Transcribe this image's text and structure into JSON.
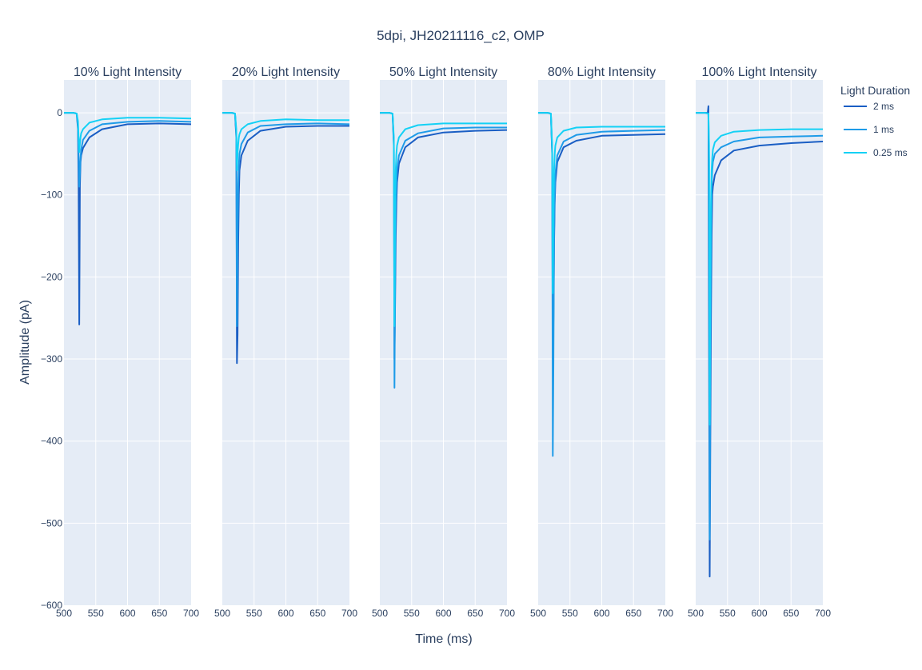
{
  "chart_data": {
    "type": "line",
    "title": "5dpi, JH20211116_c2, OMP",
    "xlabel": "Time (ms)",
    "ylabel": "Amplitude (pA)",
    "xlim": [
      500,
      700
    ],
    "ylim": [
      -600,
      40
    ],
    "x_ticks": [
      "500",
      "550",
      "600",
      "650",
      "700"
    ],
    "y_ticks": [
      {
        "value": 0,
        "label": "0"
      },
      {
        "value": -100,
        "label": "−100"
      },
      {
        "value": -200,
        "label": "−200"
      },
      {
        "value": -300,
        "label": "−300"
      },
      {
        "value": -400,
        "label": "−400"
      },
      {
        "value": -500,
        "label": "−500"
      },
      {
        "value": -600,
        "label": "−600"
      }
    ],
    "grid": true,
    "legend": {
      "title": "Light Duration",
      "placement": "top-right",
      "entries": [
        {
          "name": "2 ms",
          "color": "#1a5ec4"
        },
        {
          "name": "1 ms",
          "color": "#1e9be8"
        },
        {
          "name": "0.25 ms",
          "color": "#14d1f5"
        }
      ]
    },
    "panels": [
      {
        "title": "10% Light Intensity",
        "series": [
          {
            "name": "2 ms",
            "x": [
              500,
              515,
              520,
              522,
              523,
              524,
              524.5,
              525,
              526,
              527,
              530,
              540,
              560,
              600,
              650,
              700
            ],
            "y": [
              0,
              0,
              -1,
              -20,
              -90,
              -258,
              -180,
              -90,
              -60,
              -52,
              -43,
              -30,
              -20,
              -14,
              -13,
              -14
            ]
          },
          {
            "name": "1 ms",
            "x": [
              500,
              515,
              520,
              522,
              523,
              524,
              525,
              526,
              527,
              530,
              540,
              560,
              600,
              650,
              700
            ],
            "y": [
              0,
              0,
              -1,
              -15,
              -50,
              -90,
              -75,
              -55,
              -45,
              -33,
              -22,
              -14,
              -11,
              -10,
              -11
            ]
          },
          {
            "name": "0.25 ms",
            "x": [
              500,
              515,
              520,
              522,
              523,
              524,
              525,
              526,
              527,
              530,
              540,
              560,
              600,
              650,
              700
            ],
            "y": [
              0,
              0,
              -1,
              -10,
              -30,
              -48,
              -38,
              -30,
              -25,
              -20,
              -12,
              -8,
              -6,
              -6,
              -7
            ]
          }
        ]
      },
      {
        "title": "20% Light Intensity",
        "series": [
          {
            "name": "2 ms",
            "x": [
              500,
              515,
              520,
              522,
              523,
              524,
              525,
              526,
              527,
              530,
              540,
              560,
              600,
              650,
              700
            ],
            "y": [
              0,
              0,
              -1,
              -30,
              -305,
              -270,
              -160,
              -100,
              -70,
              -52,
              -34,
              -22,
              -17,
              -16,
              -16
            ]
          },
          {
            "name": "1 ms",
            "x": [
              500,
              515,
              520,
              522,
              523,
              524,
              525,
              526,
              527,
              530,
              540,
              560,
              600,
              650,
              700
            ],
            "y": [
              0,
              0,
              -1,
              -25,
              -260,
              -150,
              -90,
              -65,
              -50,
              -38,
              -24,
              -16,
              -14,
              -13,
              -14
            ]
          },
          {
            "name": "0.25 ms",
            "x": [
              500,
              515,
              520,
              522,
              523,
              524,
              525,
              526,
              527,
              530,
              540,
              560,
              600,
              650,
              700
            ],
            "y": [
              0,
              0,
              -1,
              -20,
              -70,
              -50,
              -38,
              -30,
              -26,
              -20,
              -14,
              -10,
              -8,
              -9,
              -9
            ]
          }
        ]
      },
      {
        "title": "50% Light Intensity",
        "series": [
          {
            "name": "2 ms",
            "x": [
              500,
              515,
              520,
              522,
              523,
              524,
              525,
              526,
              527,
              530,
              540,
              560,
              600,
              650,
              700
            ],
            "y": [
              0,
              0,
              -1,
              -40,
              -300,
              -230,
              -150,
              -110,
              -85,
              -62,
              -42,
              -30,
              -24,
              -22,
              -21
            ]
          },
          {
            "name": "1 ms",
            "x": [
              500,
              515,
              520,
              522,
              523,
              524,
              525,
              526,
              527,
              530,
              540,
              560,
              600,
              650,
              700
            ],
            "y": [
              0,
              0,
              -1,
              -35,
              -335,
              -200,
              -120,
              -90,
              -70,
              -52,
              -34,
              -25,
              -19,
              -18,
              -18
            ]
          },
          {
            "name": "0.25 ms",
            "x": [
              500,
              515,
              520,
              522,
              523,
              524,
              525,
              526,
              527,
              530,
              540,
              560,
              600,
              650,
              700
            ],
            "y": [
              0,
              0,
              -1,
              -30,
              -260,
              -120,
              -70,
              -50,
              -40,
              -30,
              -20,
              -15,
              -13,
              -13,
              -13
            ]
          }
        ]
      },
      {
        "title": "80% Light Intensity",
        "series": [
          {
            "name": "2 ms",
            "x": [
              500,
              515,
              520,
              522,
              523,
              524,
              525,
              526,
              527,
              530,
              540,
              560,
              600,
              650,
              700
            ],
            "y": [
              0,
              0,
              -1,
              -50,
              -300,
              -250,
              -160,
              -110,
              -85,
              -60,
              -42,
              -34,
              -28,
              -27,
              -26
            ]
          },
          {
            "name": "1 ms",
            "x": [
              500,
              515,
              520,
              522,
              523,
              524,
              525,
              526,
              527,
              530,
              540,
              560,
              600,
              650,
              700
            ],
            "y": [
              0,
              0,
              -1,
              -45,
              -418,
              -300,
              -150,
              -100,
              -75,
              -52,
              -35,
              -27,
              -23,
              -22,
              -21
            ]
          },
          {
            "name": "0.25 ms",
            "x": [
              500,
              515,
              520,
              522,
              523,
              524,
              525,
              526,
              527,
              530,
              540,
              560,
              600,
              650,
              700
            ],
            "y": [
              0,
              0,
              -1,
              -40,
              -220,
              -120,
              -70,
              -50,
              -40,
              -30,
              -22,
              -18,
              -17,
              -17,
              -17
            ]
          }
        ]
      },
      {
        "title": "100% Light Intensity",
        "series": [
          {
            "name": "2 ms",
            "x": [
              500,
              515,
              519,
              520,
              521,
              522,
              523,
              524,
              525,
              526,
              527,
              530,
              540,
              560,
              600,
              650,
              700
            ],
            "y": [
              0,
              0,
              0,
              8,
              -300,
              -565,
              -400,
              -250,
              -150,
              -100,
              -90,
              -76,
              -58,
              -46,
              -40,
              -37,
              -35
            ]
          },
          {
            "name": "1 ms",
            "x": [
              500,
              515,
              520,
              521,
              522,
              523,
              524,
              525,
              526,
              527,
              530,
              540,
              560,
              600,
              650,
              700
            ],
            "y": [
              0,
              0,
              -1,
              -60,
              -520,
              -300,
              -150,
              -90,
              -70,
              -60,
              -50,
              -42,
              -35,
              -30,
              -29,
              -28
            ]
          },
          {
            "name": "0.25 ms",
            "x": [
              500,
              515,
              520,
              521,
              522,
              523,
              524,
              525,
              526,
              527,
              530,
              540,
              560,
              600,
              650,
              700
            ],
            "y": [
              0,
              0,
              -1,
              -40,
              -380,
              -200,
              -110,
              -70,
              -55,
              -45,
              -36,
              -28,
              -23,
              -21,
              -20,
              -20
            ]
          }
        ]
      }
    ]
  }
}
